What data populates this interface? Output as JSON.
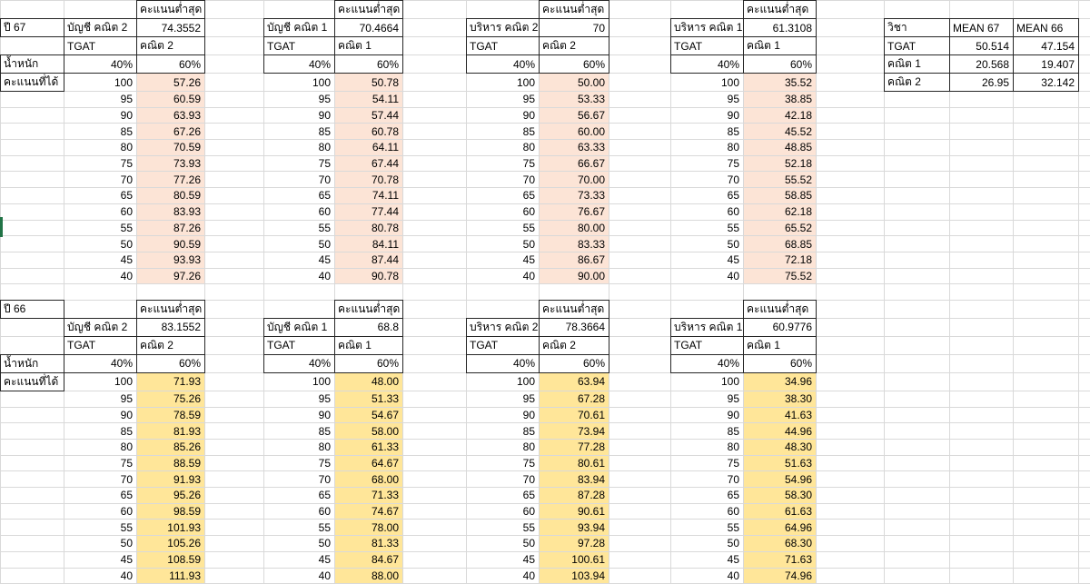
{
  "colors": {
    "top_section_fill": "#FCE4D6",
    "bottom_section_fill": "#FFE699",
    "gridline": "#D9D9D9",
    "cell_border_dark": "#262626",
    "selection_green": "#217346",
    "background": "#FFFFFF",
    "text": "#000000"
  },
  "sheet": {
    "labels": {
      "min_score": "คะแนนต่ำสุด",
      "tgat": "TGAT",
      "weight_row": "น้ำหนัก",
      "score_row": "คะแนนที่ได้"
    },
    "weights": {
      "tgat": "40%",
      "subject": "60%"
    },
    "score_steps": [
      "100",
      "95",
      "90",
      "85",
      "80",
      "75",
      "70",
      "65",
      "60",
      "55",
      "50",
      "45",
      "40"
    ],
    "year_sections": [
      {
        "year_label": "ปี 67",
        "fill_key": "top_section_fill",
        "tables": [
          {
            "name": "บัญชี คณิต 2",
            "subject": "คณิต 2",
            "min_score": "74.3552",
            "values": [
              "57.26",
              "60.59",
              "63.93",
              "67.26",
              "70.59",
              "73.93",
              "77.26",
              "80.59",
              "83.93",
              "87.26",
              "90.59",
              "93.93",
              "97.26"
            ]
          },
          {
            "name": "บัญชี คณิต 1",
            "subject": "คณิต 1",
            "min_score": "70.4664",
            "values": [
              "50.78",
              "54.11",
              "57.44",
              "60.78",
              "64.11",
              "67.44",
              "70.78",
              "74.11",
              "77.44",
              "80.78",
              "84.11",
              "87.44",
              "90.78"
            ]
          },
          {
            "name": "บริหาร คณิต 2",
            "subject": "คณิต 2",
            "min_score": "70",
            "values": [
              "50.00",
              "53.33",
              "56.67",
              "60.00",
              "63.33",
              "66.67",
              "70.00",
              "73.33",
              "76.67",
              "80.00",
              "83.33",
              "86.67",
              "90.00"
            ]
          },
          {
            "name": "บริหาร คณิต 1",
            "subject": "คณิต 1",
            "min_score": "61.3108",
            "values": [
              "35.52",
              "38.85",
              "42.18",
              "45.52",
              "48.85",
              "52.18",
              "55.52",
              "58.85",
              "62.18",
              "65.52",
              "68.85",
              "72.18",
              "75.52"
            ]
          }
        ]
      },
      {
        "year_label": "ปี 66",
        "fill_key": "bottom_section_fill",
        "tables": [
          {
            "name": "บัญชี คณิต 2",
            "subject": "คณิต 2",
            "min_score": "83.1552",
            "values": [
              "71.93",
              "75.26",
              "78.59",
              "81.93",
              "85.26",
              "88.59",
              "91.93",
              "95.26",
              "98.59",
              "101.93",
              "105.26",
              "108.59",
              "111.93"
            ]
          },
          {
            "name": "บัญชี คณิต 1",
            "subject": "คณิต 1",
            "min_score": "68.8",
            "values": [
              "48.00",
              "51.33",
              "54.67",
              "58.00",
              "61.33",
              "64.67",
              "68.00",
              "71.33",
              "74.67",
              "78.00",
              "81.33",
              "84.67",
              "88.00"
            ]
          },
          {
            "name": "บริหาร คณิต 2",
            "subject": "คณิต 2",
            "min_score": "78.3664",
            "values": [
              "63.94",
              "67.28",
              "70.61",
              "73.94",
              "77.28",
              "80.61",
              "83.94",
              "87.28",
              "90.61",
              "93.94",
              "97.28",
              "100.61",
              "103.94"
            ]
          },
          {
            "name": "บริหาร คณิต 1",
            "subject": "คณิต 1",
            "min_score": "60.9776",
            "values": [
              "34.96",
              "38.30",
              "41.63",
              "44.96",
              "48.30",
              "51.63",
              "54.96",
              "58.30",
              "61.63",
              "64.96",
              "68.30",
              "71.63",
              "74.96"
            ]
          }
        ]
      }
    ],
    "mean_table": {
      "header": [
        "วิชา",
        "MEAN 67",
        "MEAN 66"
      ],
      "rows": [
        [
          "TGAT",
          "50.514",
          "47.154"
        ],
        [
          "คณิต 1",
          "20.568",
          "19.407"
        ],
        [
          "คณิต 2",
          "26.95",
          "32.142"
        ]
      ]
    }
  }
}
